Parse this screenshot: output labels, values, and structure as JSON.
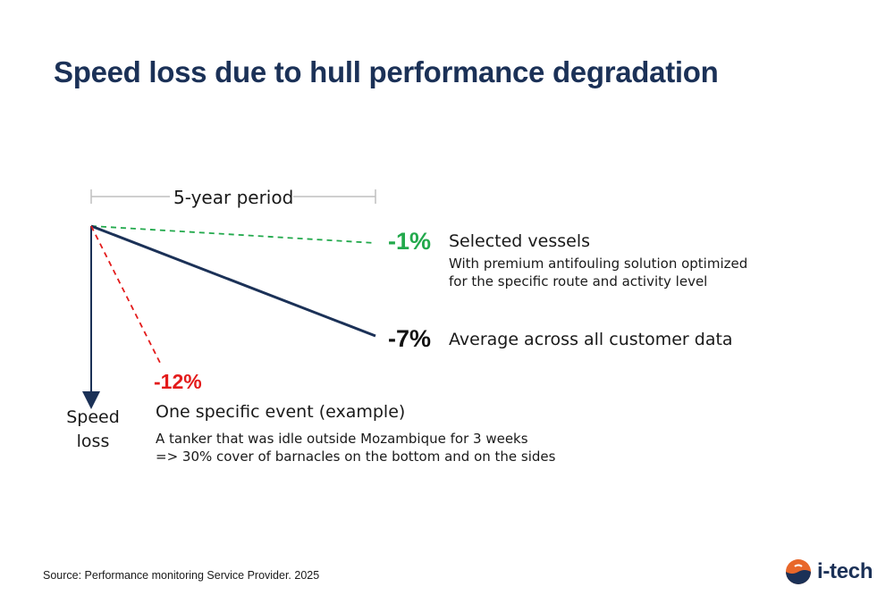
{
  "title": "Speed loss due to hull performance degradation",
  "period_label": "5-year period",
  "axis_label": "Speed\nloss",
  "series": [
    {
      "name": "selected",
      "value": "-1%",
      "heading": "Selected vessels",
      "description_lines": [
        "With premium antifouling solution optimized",
        "for the specific route and activity level"
      ],
      "color": "#22a94c",
      "style": "dashed"
    },
    {
      "name": "average",
      "value": "-7%",
      "heading": "Average across all customer data",
      "description_lines": [],
      "color": "#1b3157",
      "style": "solid"
    },
    {
      "name": "event",
      "value": "-12%",
      "heading": "One specific event (example)",
      "description_lines": [
        "A tanker that was idle outside Mozambique for 3 weeks",
        "=> 30% cover of barnacles on the bottom and on the sides"
      ],
      "color": "#e31b1b",
      "style": "dashed"
    }
  ],
  "source": "Source: Performance monitoring Service Provider. 2025",
  "logo": {
    "text": "i-tech",
    "colors": {
      "orange": "#e8672a",
      "navy": "#1b3157"
    }
  }
}
